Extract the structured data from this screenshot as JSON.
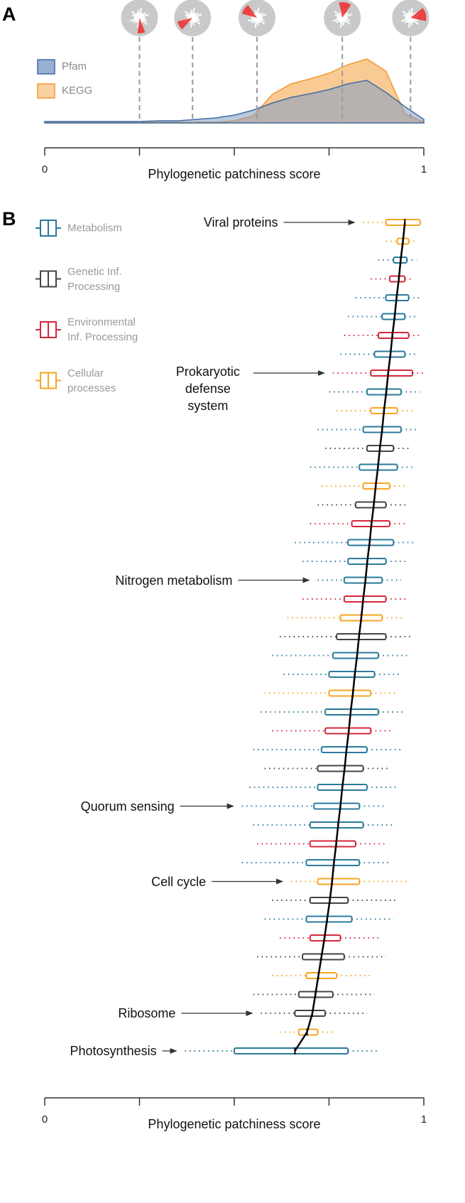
{
  "chart_data": [
    {
      "type": "area",
      "panel_label": "A",
      "xlabel": "Phylogenetic patchiness score",
      "xlim": [
        0,
        1
      ],
      "xticks": [
        0,
        1
      ],
      "xminor_ticks": [
        0.25,
        0.5,
        0.75
      ],
      "ylim": [
        0,
        1
      ],
      "x": [
        0,
        0.05,
        0.1,
        0.15,
        0.2,
        0.25,
        0.3,
        0.35,
        0.4,
        0.45,
        0.5,
        0.55,
        0.6,
        0.65,
        0.7,
        0.75,
        0.8,
        0.85,
        0.9,
        0.95,
        1
      ],
      "series": [
        {
          "name": "KEGG",
          "color": "#f29a2e",
          "fill": "#f9c48a",
          "values": [
            0.01,
            0.01,
            0.01,
            0.01,
            0.01,
            0.01,
            0.01,
            0.01,
            0.01,
            0.01,
            0.03,
            0.1,
            0.4,
            0.55,
            0.62,
            0.7,
            0.82,
            0.9,
            0.73,
            0.13,
            0.01
          ]
        },
        {
          "name": "Pfam",
          "color": "#3f6ea5",
          "fill": "#7f9cc4",
          "values": [
            0.02,
            0.02,
            0.02,
            0.02,
            0.02,
            0.02,
            0.03,
            0.03,
            0.05,
            0.07,
            0.11,
            0.18,
            0.28,
            0.36,
            0.41,
            0.47,
            0.55,
            0.6,
            0.43,
            0.23,
            0.05
          ]
        }
      ],
      "markers": [
        0.25,
        0.39,
        0.56,
        0.785,
        0.965
      ]
    },
    {
      "type": "boxplot",
      "panel_label": "B",
      "xlabel": "Phylogenetic patchiness score",
      "xlim": [
        0,
        1
      ],
      "xticks": [
        0,
        1
      ],
      "xminor_ticks": [
        0.25,
        0.5,
        0.75
      ],
      "series": [
        {
          "name": "Metabolism",
          "color": "#2a7a9c"
        },
        {
          "name": "Genetic Inf. Processing",
          "color": "#444444"
        },
        {
          "name": "Environmental Inf. Processing",
          "color": "#d6283c"
        },
        {
          "name": "Cellular processes",
          "color": "#f5a623"
        }
      ],
      "categories": [
        "Viral proteins",
        null,
        null,
        null,
        null,
        null,
        null,
        null,
        "Prokaryotic defense system",
        null,
        null,
        null,
        null,
        null,
        null,
        null,
        null,
        null,
        null,
        "Nitrogen metabolism",
        null,
        null,
        null,
        null,
        null,
        null,
        null,
        null,
        null,
        null,
        null,
        "Quorum sensing",
        null,
        null,
        null,
        "Cell cycle",
        null,
        null,
        null,
        null,
        null,
        null,
        "Ribosome",
        null,
        "Photosynthesis"
      ],
      "groups": [
        3,
        3,
        0,
        2,
        0,
        0,
        2,
        0,
        2,
        0,
        3,
        0,
        1,
        0,
        3,
        1,
        2,
        0,
        0,
        0,
        2,
        3,
        1,
        0,
        0,
        3,
        0,
        2,
        0,
        1,
        0,
        0,
        0,
        2,
        0,
        3,
        1,
        0,
        2,
        1,
        3,
        1,
        1,
        3,
        0
      ],
      "boxes": [
        [
          0.84,
          0.9,
          0.95,
          0.99,
          1.0
        ],
        [
          0.9,
          0.93,
          0.945,
          0.96,
          0.98
        ],
        [
          0.88,
          0.92,
          0.939,
          0.955,
          0.98
        ],
        [
          0.86,
          0.91,
          0.934,
          0.95,
          0.97
        ],
        [
          0.82,
          0.9,
          0.928,
          0.96,
          0.99
        ],
        [
          0.8,
          0.89,
          0.923,
          0.95,
          0.98
        ],
        [
          0.79,
          0.88,
          0.917,
          0.96,
          0.99
        ],
        [
          0.78,
          0.87,
          0.912,
          0.95,
          0.98
        ],
        [
          0.76,
          0.86,
          0.906,
          0.97,
          1.0
        ],
        [
          0.75,
          0.85,
          0.901,
          0.94,
          0.99
        ],
        [
          0.77,
          0.86,
          0.895,
          0.93,
          0.97
        ],
        [
          0.72,
          0.84,
          0.89,
          0.94,
          0.98
        ],
        [
          0.74,
          0.85,
          0.884,
          0.92,
          0.96
        ],
        [
          0.7,
          0.83,
          0.879,
          0.93,
          0.97
        ],
        [
          0.73,
          0.84,
          0.873,
          0.91,
          0.95
        ],
        [
          0.72,
          0.82,
          0.868,
          0.9,
          0.96
        ],
        [
          0.7,
          0.81,
          0.862,
          0.91,
          0.95
        ],
        [
          0.66,
          0.8,
          0.857,
          0.92,
          0.98
        ],
        [
          0.68,
          0.8,
          0.851,
          0.9,
          0.96
        ],
        [
          0.72,
          0.79,
          0.846,
          0.89,
          0.94
        ],
        [
          0.68,
          0.79,
          0.84,
          0.9,
          0.96
        ],
        [
          0.64,
          0.78,
          0.835,
          0.89,
          0.95
        ],
        [
          0.62,
          0.77,
          0.829,
          0.9,
          0.97
        ],
        [
          0.6,
          0.76,
          0.824,
          0.88,
          0.96
        ],
        [
          0.63,
          0.75,
          0.818,
          0.87,
          0.94
        ],
        [
          0.58,
          0.75,
          0.813,
          0.86,
          0.93
        ],
        [
          0.57,
          0.74,
          0.807,
          0.88,
          0.95
        ],
        [
          0.6,
          0.74,
          0.802,
          0.86,
          0.92
        ],
        [
          0.55,
          0.73,
          0.796,
          0.85,
          0.94
        ],
        [
          0.58,
          0.72,
          0.791,
          0.84,
          0.91
        ],
        [
          0.54,
          0.72,
          0.785,
          0.85,
          0.93
        ],
        [
          0.52,
          0.71,
          0.78,
          0.83,
          0.9
        ],
        [
          0.55,
          0.7,
          0.774,
          0.84,
          0.92
        ],
        [
          0.56,
          0.7,
          0.769,
          0.82,
          0.9
        ],
        [
          0.52,
          0.69,
          0.763,
          0.83,
          0.91
        ],
        [
          0.65,
          0.72,
          0.758,
          0.83,
          0.96
        ],
        [
          0.6,
          0.7,
          0.752,
          0.8,
          0.93
        ],
        [
          0.58,
          0.69,
          0.745,
          0.81,
          0.92
        ],
        [
          0.62,
          0.7,
          0.738,
          0.78,
          0.88
        ],
        [
          0.56,
          0.68,
          0.73,
          0.79,
          0.9
        ],
        [
          0.6,
          0.69,
          0.722,
          0.77,
          0.86
        ],
        [
          0.55,
          0.67,
          0.714,
          0.76,
          0.87
        ],
        [
          0.57,
          0.66,
          0.706,
          0.74,
          0.85
        ],
        [
          0.62,
          0.67,
          0.692,
          0.72,
          0.76
        ],
        [
          0.37,
          0.5,
          0.66,
          0.8,
          0.88
        ]
      ]
    }
  ]
}
